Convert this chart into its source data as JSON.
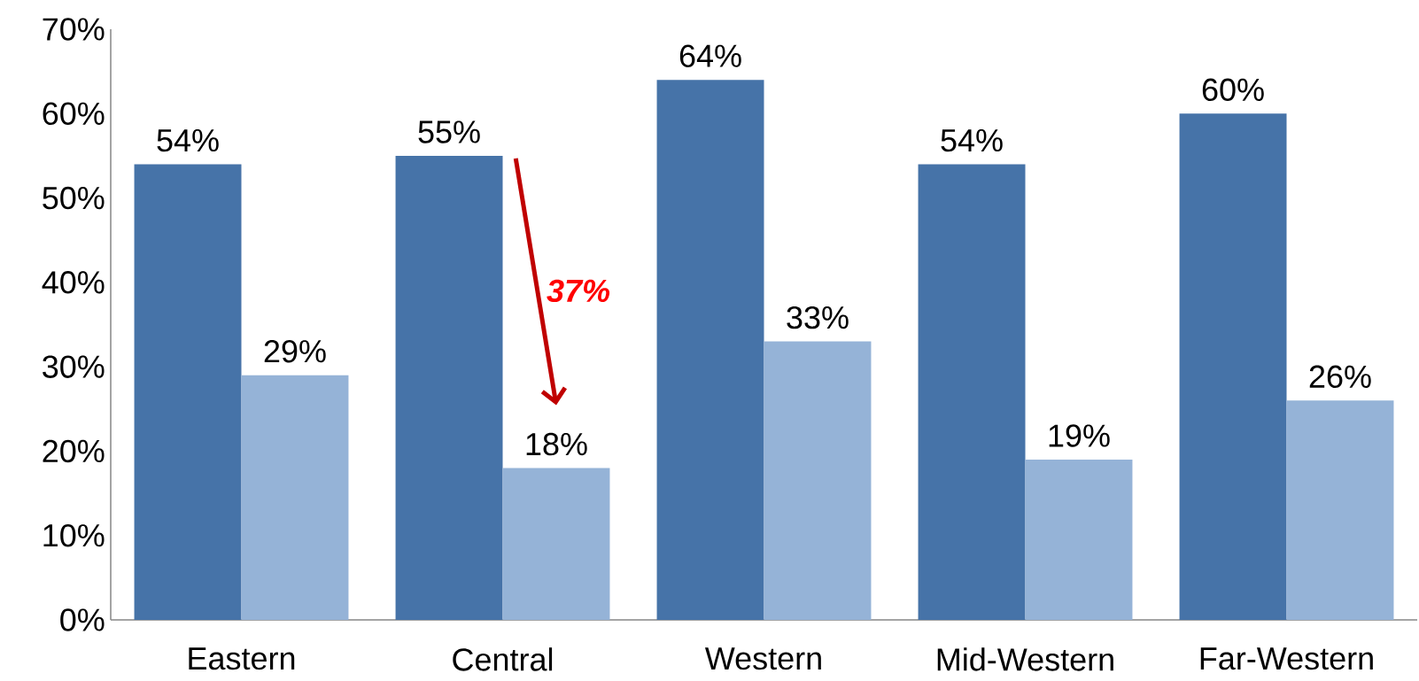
{
  "chart_data": {
    "type": "bar",
    "categories": [
      "Eastern",
      "Central",
      "Western",
      "Mid-Western",
      "Far-Western"
    ],
    "series": [
      {
        "color": "#4673a8",
        "values": [
          54,
          55,
          64,
          54,
          60
        ],
        "value_labels": [
          "54%",
          "55%",
          "64%",
          "54%",
          "60%"
        ]
      },
      {
        "color": "#95b3d7",
        "values": [
          29,
          18,
          33,
          19,
          26
        ],
        "value_labels": [
          "29%",
          "18%",
          "33%",
          "19%",
          "26%"
        ]
      }
    ],
    "ylim": [
      0,
      70
    ],
    "yticks": [
      {
        "value": 0,
        "label": "0%"
      },
      {
        "value": 10,
        "label": "10%"
      },
      {
        "value": 20,
        "label": "20%"
      },
      {
        "value": 30,
        "label": "30%"
      },
      {
        "value": 40,
        "label": "40%"
      },
      {
        "value": 50,
        "label": "50%"
      },
      {
        "value": 60,
        "label": "60%"
      },
      {
        "value": 70,
        "label": "70%"
      }
    ],
    "annotations": [
      {
        "text": "37%",
        "x": "Central",
        "y": 39
      }
    ]
  }
}
